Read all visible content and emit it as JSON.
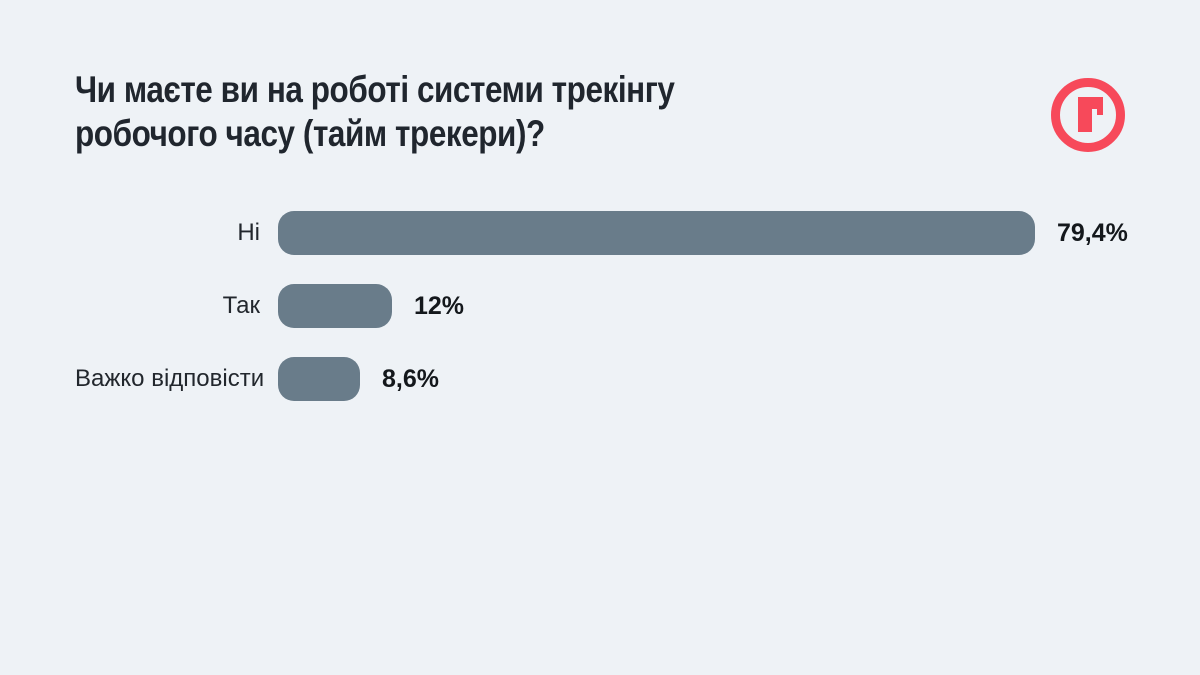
{
  "page": {
    "background": "#EEF2F6",
    "title_lines": [
      "Чи маєте ви на роботі системи трекінгу",
      "робочого часу (тайм трекери)?"
    ],
    "title_color": "#20262E"
  },
  "logo": {
    "letter": "r",
    "color": "#F7495A"
  },
  "chart_data": {
    "type": "bar",
    "orientation": "horizontal",
    "title": "Чи маєте ви на роботі системи трекінгу робочого часу (тайм трекери)?",
    "categories": [
      "Ні",
      "Так",
      "Важко відповісти"
    ],
    "values": [
      79.4,
      12,
      8.6
    ],
    "value_labels": [
      "79,4%",
      "12%",
      "8,6%"
    ],
    "max_value": 79.4,
    "bar_color": "#697C8A",
    "grid": false,
    "legend": false
  }
}
